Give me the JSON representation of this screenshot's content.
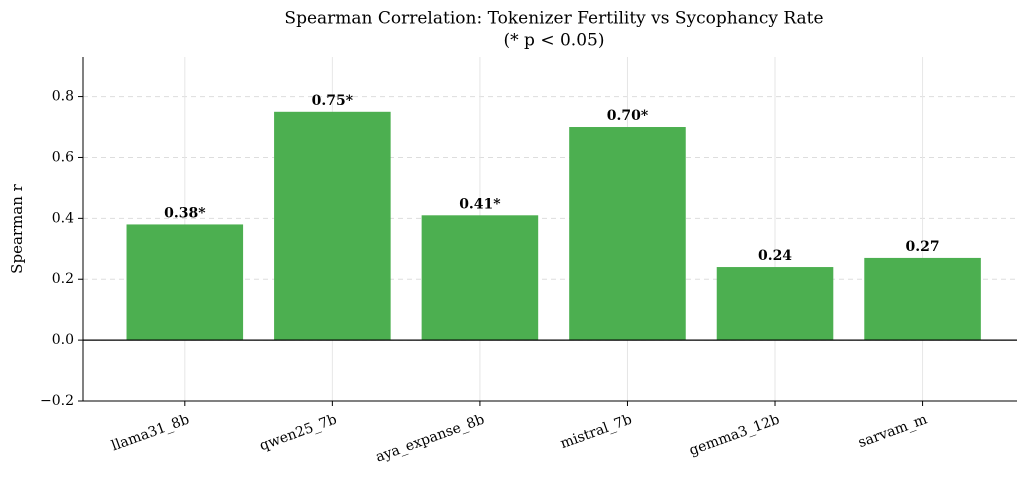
{
  "chart_data": {
    "type": "bar",
    "title": "Spearman Correlation: Tokenizer Fertility vs Sycophancy Rate",
    "subtitle": "(* p < 0.05)",
    "ylabel": "Spearman r",
    "categories": [
      "llama31_8b",
      "qwen25_7b",
      "aya_expanse_8b",
      "mistral_7b",
      "gemma3_12b",
      "sarvam_m"
    ],
    "values": [
      0.38,
      0.75,
      0.41,
      0.7,
      0.24,
      0.27
    ],
    "value_labels": [
      "0.38*",
      "0.75*",
      "0.41*",
      "0.70*",
      "0.24",
      "0.27"
    ],
    "color": "#4caf50",
    "ylim": [
      -0.2,
      0.93
    ],
    "yticks": [
      {
        "value": -0.2,
        "label": "−0.2"
      },
      {
        "value": 0,
        "label": "0.0"
      },
      0.2,
      0.4,
      0.6,
      0.8
    ],
    "grid": true
  }
}
